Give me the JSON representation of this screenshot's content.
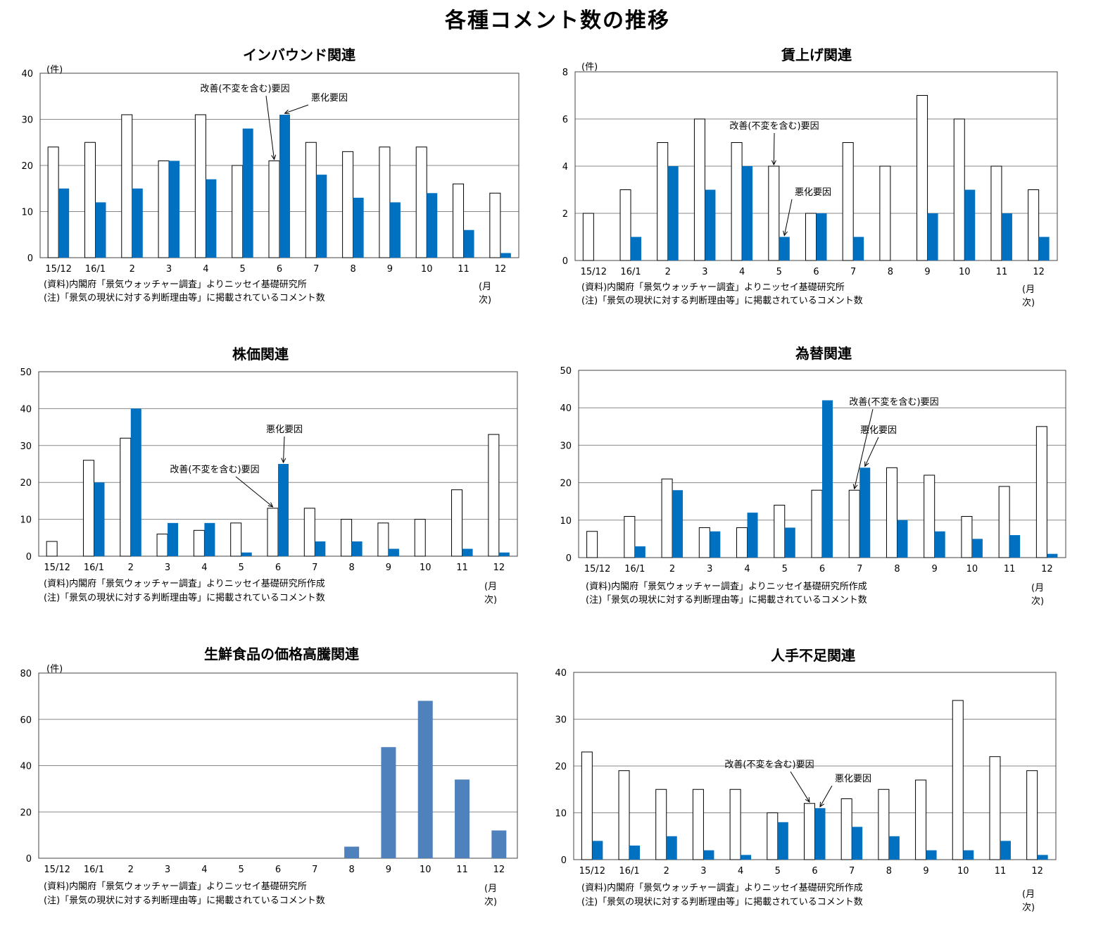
{
  "title": "各種コメント数の推移",
  "legend_labels": {
    "improve": "改善(不変を含む)要因",
    "worsen": "悪化要因"
  },
  "colors": {
    "improve_fill": "#ffffff",
    "worsen_fill": "#0070c0",
    "single_fill": "#4f81bd",
    "grid": "#888888"
  },
  "chart_data": [
    {
      "type": "bar",
      "title": "インバウンド関連",
      "ylabel": "(件)",
      "xlabel": "(月次)",
      "ylim": [
        0,
        40
      ],
      "yticks": [
        0,
        10,
        20,
        30,
        40
      ],
      "categories": [
        "15/12",
        "16/1",
        "2",
        "3",
        "4",
        "5",
        "6",
        "7",
        "8",
        "9",
        "10",
        "11",
        "12"
      ],
      "series": [
        {
          "name": "改善(不変を含む)要因",
          "values": [
            24,
            25,
            31,
            21,
            31,
            20,
            21,
            25,
            23,
            24,
            24,
            16,
            14
          ]
        },
        {
          "name": "悪化要因",
          "values": [
            15,
            12,
            15,
            21,
            17,
            28,
            31,
            18,
            13,
            12,
            14,
            6,
            1
          ]
        }
      ],
      "annotations": [
        "改善(不変を含む)要因",
        "悪化要因"
      ],
      "source": "(資料)内閣府「景気ウォッチャー調査」よりニッセイ基礎研究所",
      "note": "(注)「景気の現状に対する判断理由等」に掲載されているコメント数"
    },
    {
      "type": "bar",
      "title": "賃上げ関連",
      "ylabel": "(件)",
      "xlabel": "(月次)",
      "ylim": [
        0,
        8
      ],
      "yticks": [
        0,
        2,
        4,
        6,
        8
      ],
      "categories": [
        "15/12",
        "16/1",
        "2",
        "3",
        "4",
        "5",
        "6",
        "7",
        "8",
        "9",
        "10",
        "11",
        "12"
      ],
      "series": [
        {
          "name": "改善(不変を含む)要因",
          "values": [
            2,
            3,
            5,
            6,
            5,
            4,
            2,
            5,
            4,
            7,
            6,
            4,
            3
          ]
        },
        {
          "name": "悪化要因",
          "values": [
            0,
            1,
            4,
            3,
            4,
            1,
            2,
            1,
            0,
            2,
            3,
            2,
            1
          ]
        }
      ],
      "annotations": [
        "改善(不変を含む)要因",
        "悪化要因"
      ],
      "source": "(資料)内閣府「景気ウォッチャー調査」よりニッセイ基礎研究所",
      "note": "(注)「景気の現状に対する判断理由等」に掲載されているコメント数"
    },
    {
      "type": "bar",
      "title": "株価関連",
      "ylabel": "",
      "xlabel": "(月次)",
      "ylim": [
        0,
        50
      ],
      "yticks": [
        0,
        10,
        20,
        30,
        40,
        50
      ],
      "categories": [
        "15/12",
        "16/1",
        "2",
        "3",
        "4",
        "5",
        "6",
        "7",
        "8",
        "9",
        "10",
        "11",
        "12"
      ],
      "series": [
        {
          "name": "改善(不変を含む)要因",
          "values": [
            4,
            26,
            32,
            6,
            7,
            9,
            13,
            13,
            10,
            9,
            10,
            18,
            33
          ]
        },
        {
          "name": "悪化要因",
          "values": [
            0,
            20,
            40,
            9,
            9,
            1,
            25,
            4,
            4,
            2,
            0,
            2,
            1
          ]
        }
      ],
      "annotations": [
        "悪化要因",
        "改善(不変を含む)要因"
      ],
      "source": "(資料)内閣府「景気ウォッチャー調査」よりニッセイ基礎研究所作成",
      "note": "(注)「景気の現状に対する判断理由等」に掲載されているコメント数"
    },
    {
      "type": "bar",
      "title": "為替関連",
      "ylabel": "",
      "xlabel": "(月次)",
      "ylim": [
        0,
        50
      ],
      "yticks": [
        0,
        10,
        20,
        30,
        40,
        50
      ],
      "categories": [
        "15/12",
        "16/1",
        "2",
        "3",
        "4",
        "5",
        "6",
        "7",
        "8",
        "9",
        "10",
        "11",
        "12"
      ],
      "series": [
        {
          "name": "改善(不変を含む)要因",
          "values": [
            7,
            11,
            21,
            8,
            8,
            14,
            18,
            18,
            24,
            22,
            11,
            19,
            35
          ]
        },
        {
          "name": "悪化要因",
          "values": [
            0,
            3,
            18,
            7,
            12,
            8,
            42,
            24,
            10,
            7,
            5,
            6,
            1
          ]
        }
      ],
      "annotations": [
        "改善(不変を含む)要因",
        "悪化要因"
      ],
      "source": "(資料)内閣府「景気ウォッチャー調査」よりニッセイ基礎研究所作成",
      "note": "(注)「景気の現状に対する判断理由等」に掲載されているコメント数"
    },
    {
      "type": "bar",
      "title": "生鮮食品の価格高騰関連",
      "ylabel": "(件)",
      "xlabel": "(月次)",
      "ylim": [
        0,
        80
      ],
      "yticks": [
        0,
        20,
        40,
        60,
        80
      ],
      "categories": [
        "15/12",
        "16/1",
        "2",
        "3",
        "4",
        "5",
        "6",
        "7",
        "8",
        "9",
        "10",
        "11",
        "12"
      ],
      "series": [
        {
          "values": [
            0,
            0,
            0,
            0,
            0,
            0,
            0,
            0,
            5,
            48,
            68,
            34,
            12
          ]
        }
      ],
      "annotations": [],
      "source": "(資料)内閣府「景気ウォッチャー調査」よりニッセイ基礎研究所",
      "note": "(注)「景気の現状に対する判断理由等」に掲載されているコメント数"
    },
    {
      "type": "bar",
      "title": "人手不足関連",
      "ylabel": "",
      "xlabel": "(月次)",
      "ylim": [
        0,
        40
      ],
      "yticks": [
        0,
        10,
        20,
        30,
        40
      ],
      "categories": [
        "15/12",
        "16/1",
        "2",
        "3",
        "4",
        "5",
        "6",
        "7",
        "8",
        "9",
        "10",
        "11",
        "12"
      ],
      "series": [
        {
          "name": "改善(不変を含む)要因",
          "values": [
            23,
            19,
            15,
            15,
            15,
            10,
            12,
            13,
            15,
            17,
            34,
            22,
            19
          ]
        },
        {
          "name": "悪化要因",
          "values": [
            4,
            3,
            5,
            2,
            1,
            8,
            11,
            7,
            5,
            2,
            2,
            4,
            1
          ]
        }
      ],
      "annotations": [
        "改善(不変を含む)要因",
        "悪化要因"
      ],
      "source": "(資料)内閣府「景気ウォッチャー調査」よりニッセイ基礎研究所作成",
      "note": "(注)「景気の現状に対する判断理由等」に掲載されているコメント数"
    }
  ]
}
